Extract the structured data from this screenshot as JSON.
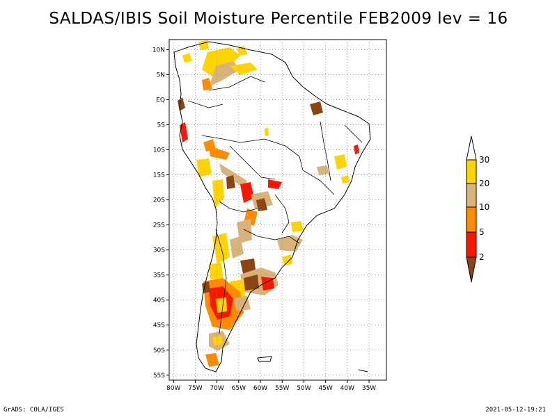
{
  "title": "SALDAS/IBIS Soil Moisture Percentile FEB2009 lev = 16",
  "footer": {
    "left": "GrADS: COLA/IGES",
    "right": "2021-05-12-19:21"
  },
  "map": {
    "lat_labels": [
      "10N",
      "5N",
      "EQ",
      "5S",
      "10S",
      "15S",
      "20S",
      "25S",
      "30S",
      "35S",
      "40S",
      "45S",
      "50S",
      "55S"
    ],
    "lon_labels": [
      "80W",
      "75W",
      "70W",
      "65W",
      "60W",
      "55W",
      "50W",
      "45W",
      "40W",
      "35W"
    ],
    "lon_range": [
      -81,
      -31
    ],
    "lat_range": [
      -56,
      12
    ],
    "grid": "dotted"
  },
  "legend": {
    "labels": [
      "30",
      "20",
      "10",
      "5",
      "2"
    ],
    "colors": {
      "above_30": "#ffffff",
      "20_30": "#ffd400",
      "10_20": "#d8b47a",
      "5_10": "#ff8c00",
      "2_5": "#ff1500",
      "below_2": "#8b4513"
    }
  }
}
